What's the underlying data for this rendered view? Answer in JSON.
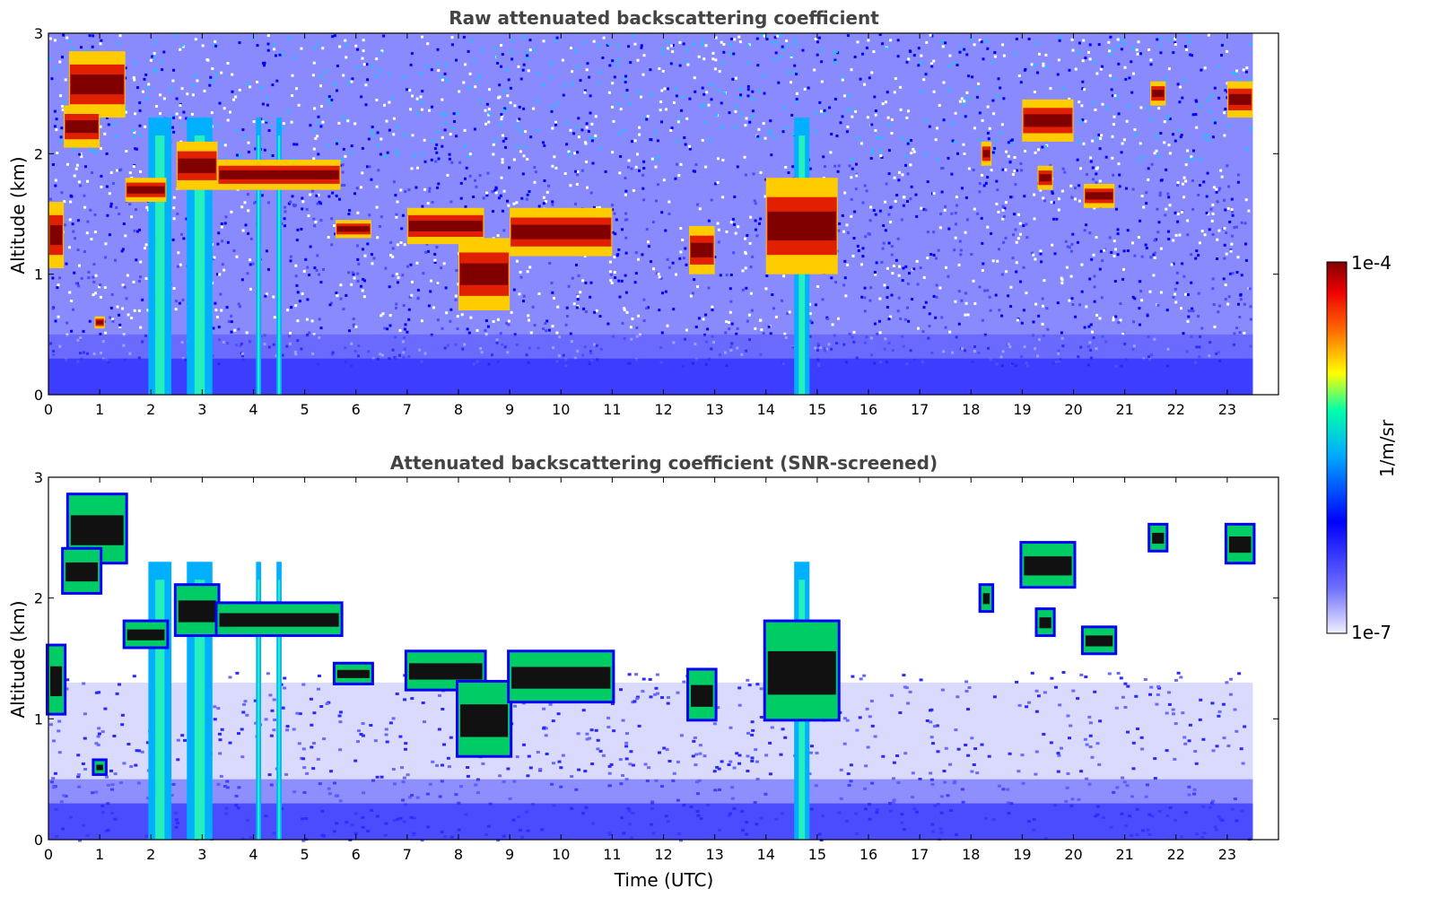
{
  "colors": {
    "low": "#ffffff",
    "blue": "#0000ff",
    "cyan": "#00ffff",
    "yellow": "#ffff00",
    "red": "#ff0000",
    "darkred": "#800000",
    "black": "#000000"
  },
  "chart_data": [
    {
      "type": "heatmap",
      "title": "Raw attenuated backscattering coefficient",
      "xlabel": "",
      "ylabel": "Altitude (km)",
      "xlim": [
        0,
        24
      ],
      "ylim": [
        0,
        3
      ],
      "xticks": [
        "0",
        "1",
        "2",
        "3",
        "4",
        "5",
        "6",
        "7",
        "8",
        "9",
        "10",
        "11",
        "12",
        "13",
        "14",
        "15",
        "16",
        "17",
        "18",
        "19",
        "20",
        "21",
        "22",
        "23"
      ],
      "yticks": [
        "0",
        "1",
        "2",
        "3"
      ],
      "screened": false,
      "data_end_hour": 23.5,
      "layers": [
        {
          "x0": 0.0,
          "x1": 0.3,
          "y0": 1.05,
          "y1": 1.6
        },
        {
          "x0": 0.4,
          "x1": 1.5,
          "y0": 2.3,
          "y1": 2.85
        },
        {
          "x0": 0.3,
          "x1": 1.0,
          "y0": 2.05,
          "y1": 2.4
        },
        {
          "x0": 0.9,
          "x1": 1.1,
          "y0": 0.55,
          "y1": 0.65
        },
        {
          "x0": 1.5,
          "x1": 2.3,
          "y0": 1.6,
          "y1": 1.8
        },
        {
          "x0": 2.5,
          "x1": 3.3,
          "y0": 1.7,
          "y1": 2.1
        },
        {
          "x0": 3.3,
          "x1": 5.7,
          "y0": 1.7,
          "y1": 1.95
        },
        {
          "x0": 5.6,
          "x1": 6.3,
          "y0": 1.3,
          "y1": 1.45
        },
        {
          "x0": 7.0,
          "x1": 8.5,
          "y0": 1.25,
          "y1": 1.55
        },
        {
          "x0": 8.0,
          "x1": 9.0,
          "y0": 0.7,
          "y1": 1.3
        },
        {
          "x0": 9.0,
          "x1": 11.0,
          "y0": 1.15,
          "y1": 1.55
        },
        {
          "x0": 12.5,
          "x1": 13.0,
          "y0": 1.0,
          "y1": 1.4
        },
        {
          "x0": 14.0,
          "x1": 15.4,
          "y0": 1.0,
          "y1": 1.8
        },
        {
          "x0": 18.2,
          "x1": 18.4,
          "y0": 1.9,
          "y1": 2.1
        },
        {
          "x0": 19.0,
          "x1": 20.0,
          "y0": 2.1,
          "y1": 2.45
        },
        {
          "x0": 19.3,
          "x1": 19.6,
          "y0": 1.7,
          "y1": 1.9
        },
        {
          "x0": 20.2,
          "x1": 20.8,
          "y0": 1.55,
          "y1": 1.75
        },
        {
          "x0": 21.5,
          "x1": 21.8,
          "y0": 2.4,
          "y1": 2.6
        },
        {
          "x0": 23.0,
          "x1": 23.5,
          "y0": 2.3,
          "y1": 2.6
        }
      ],
      "rain_columns": [
        {
          "x0": 1.95,
          "x1": 2.4
        },
        {
          "x0": 2.7,
          "x1": 3.2
        },
        {
          "x0": 4.05,
          "x1": 4.15
        },
        {
          "x0": 4.45,
          "x1": 4.55
        },
        {
          "x0": 14.55,
          "x1": 14.85
        }
      ]
    },
    {
      "type": "heatmap",
      "title": "Attenuated backscattering coefficient (SNR-screened)",
      "xlabel": "Time (UTC)",
      "ylabel": "Altitude (km)",
      "xlim": [
        0,
        24
      ],
      "ylim": [
        0,
        3
      ],
      "xticks": [
        "0",
        "1",
        "2",
        "3",
        "4",
        "5",
        "6",
        "7",
        "8",
        "9",
        "10",
        "11",
        "12",
        "13",
        "14",
        "15",
        "16",
        "17",
        "18",
        "19",
        "20",
        "21",
        "22",
        "23"
      ],
      "yticks": [
        "0",
        "1",
        "2",
        "3"
      ],
      "screened": true,
      "data_end_hour": 23.5,
      "layers": [
        {
          "x0": 0.0,
          "x1": 0.3,
          "y0": 1.05,
          "y1": 1.6
        },
        {
          "x0": 0.4,
          "x1": 1.5,
          "y0": 2.3,
          "y1": 2.85
        },
        {
          "x0": 0.3,
          "x1": 1.0,
          "y0": 2.05,
          "y1": 2.4
        },
        {
          "x0": 0.9,
          "x1": 1.1,
          "y0": 0.55,
          "y1": 0.65
        },
        {
          "x0": 1.5,
          "x1": 2.3,
          "y0": 1.6,
          "y1": 1.8
        },
        {
          "x0": 2.5,
          "x1": 3.3,
          "y0": 1.7,
          "y1": 2.1
        },
        {
          "x0": 3.3,
          "x1": 5.7,
          "y0": 1.7,
          "y1": 1.95
        },
        {
          "x0": 5.6,
          "x1": 6.3,
          "y0": 1.3,
          "y1": 1.45
        },
        {
          "x0": 7.0,
          "x1": 8.5,
          "y0": 1.25,
          "y1": 1.55
        },
        {
          "x0": 8.0,
          "x1": 9.0,
          "y0": 0.7,
          "y1": 1.3
        },
        {
          "x0": 9.0,
          "x1": 11.0,
          "y0": 1.15,
          "y1": 1.55
        },
        {
          "x0": 12.5,
          "x1": 13.0,
          "y0": 1.0,
          "y1": 1.4
        },
        {
          "x0": 14.0,
          "x1": 15.4,
          "y0": 1.0,
          "y1": 1.8
        },
        {
          "x0": 18.2,
          "x1": 18.4,
          "y0": 1.9,
          "y1": 2.1
        },
        {
          "x0": 19.0,
          "x1": 20.0,
          "y0": 2.1,
          "y1": 2.45
        },
        {
          "x0": 19.3,
          "x1": 19.6,
          "y0": 1.7,
          "y1": 1.9
        },
        {
          "x0": 20.2,
          "x1": 20.8,
          "y0": 1.55,
          "y1": 1.75
        },
        {
          "x0": 21.5,
          "x1": 21.8,
          "y0": 2.4,
          "y1": 2.6
        },
        {
          "x0": 23.0,
          "x1": 23.5,
          "y0": 2.3,
          "y1": 2.6
        }
      ],
      "rain_columns": [
        {
          "x0": 1.95,
          "x1": 2.4
        },
        {
          "x0": 2.7,
          "x1": 3.2
        },
        {
          "x0": 4.05,
          "x1": 4.15
        },
        {
          "x0": 4.45,
          "x1": 4.55
        },
        {
          "x0": 14.55,
          "x1": 14.85
        }
      ]
    }
  ],
  "colorbar": {
    "label": "1/m/sr",
    "max_label": "1e-4",
    "min_label": "1e-7",
    "scale": "log"
  }
}
